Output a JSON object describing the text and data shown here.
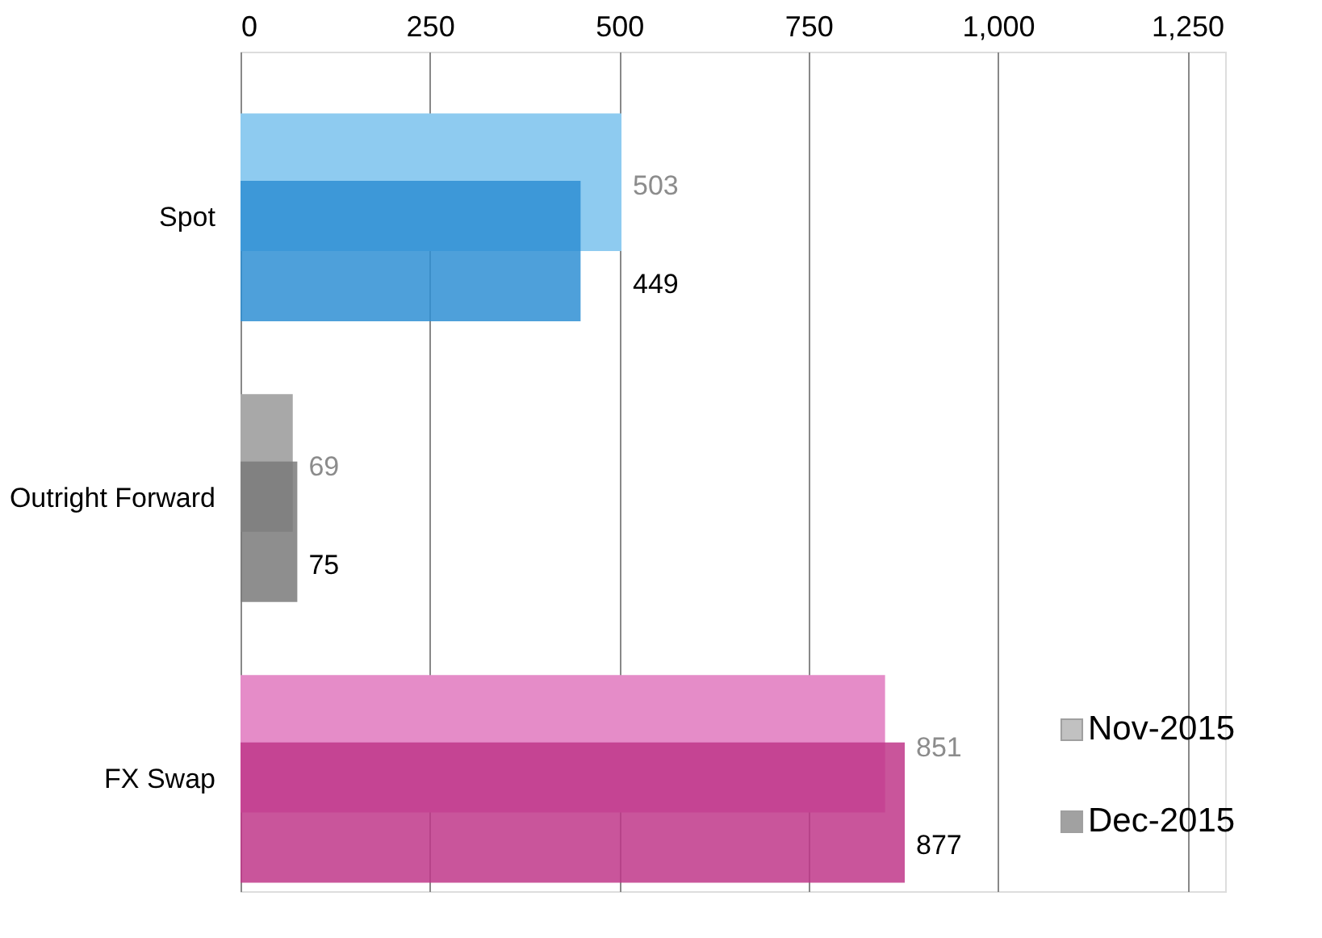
{
  "chart_data": {
    "type": "bar",
    "orientation": "horizontal",
    "categories": [
      "Spot",
      "Outright Forward",
      "FX Swap"
    ],
    "series": [
      {
        "name": "Nov-2015",
        "colors": [
          "#8ecbf0",
          "#a8a8a8",
          "#e58cc8"
        ],
        "values": [
          503,
          69,
          851
        ]
      },
      {
        "name": "Dec-2015",
        "colors": [
          "#2f8fd3",
          "#7a7a7a",
          "#c0378a"
        ],
        "values": [
          449,
          75,
          877
        ]
      }
    ],
    "xlim": [
      0,
      1300
    ],
    "xticks": [
      0,
      250,
      500,
      750,
      {
        "value": 1000,
        "label": "1,000"
      },
      {
        "value": 1250,
        "label": "1,250"
      }
    ],
    "grid": "x",
    "legend": "bottom right",
    "data_labels": true
  }
}
